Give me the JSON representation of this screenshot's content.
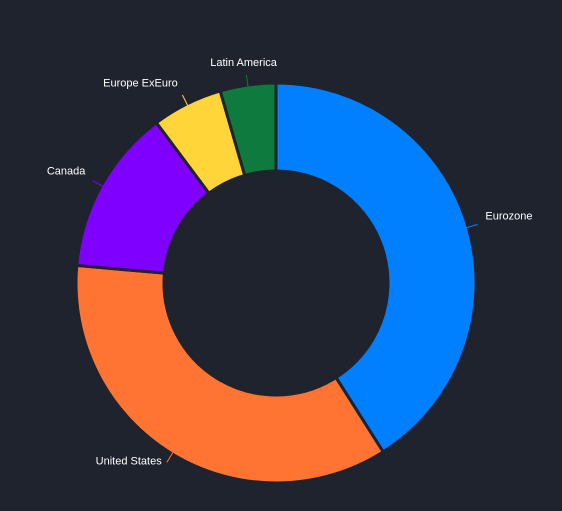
{
  "chart_data": {
    "type": "donut",
    "categories": [
      "Eurozone",
      "United States",
      "Canada",
      "Europe ExEuro",
      "Latin America"
    ],
    "values": [
      41,
      35.4,
      13.4,
      5.7,
      4.5
    ],
    "colors": [
      "#0080ff",
      "#ff7433",
      "#8000ff",
      "#ffd53a",
      "#0e7a3e"
    ]
  }
}
